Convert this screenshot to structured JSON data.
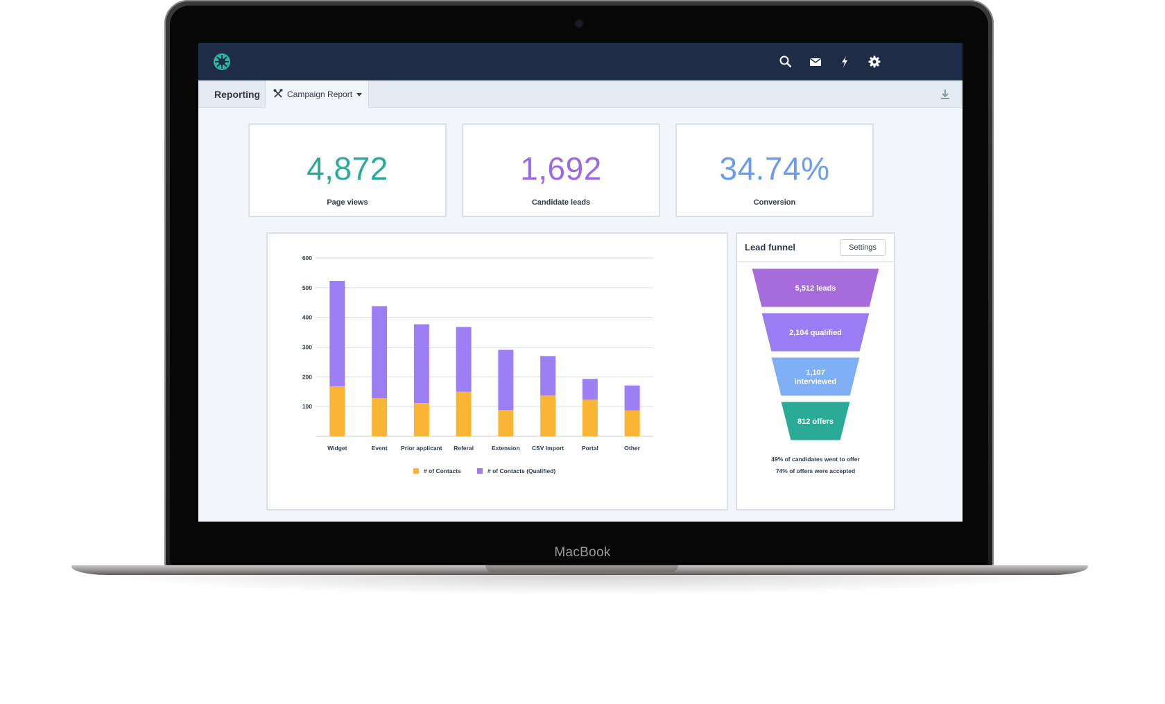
{
  "device": {
    "label": "MacBook"
  },
  "topbar": {
    "logo": "app-logo",
    "icons": [
      "search-icon",
      "mail-icon",
      "bolt-icon",
      "gear-icon"
    ]
  },
  "subbar": {
    "section": "Reporting",
    "report_tab": "Campaign Report",
    "download_icon": "download-icon"
  },
  "stats": [
    {
      "value": "4,872",
      "label": "Page views",
      "color": "#2bab96"
    },
    {
      "value": "1,692",
      "label": "Candidate leads",
      "color": "#9b6ae0"
    },
    {
      "value": "34.74%",
      "label": "Conversion",
      "color": "#6b9cf0"
    }
  ],
  "chart_data": {
    "type": "bar",
    "stacked": true,
    "categories": [
      "Widget",
      "Event",
      "Prior applicant",
      "Referal",
      "Extension",
      "CSV Import",
      "Portal",
      "Other"
    ],
    "series": [
      {
        "name": "# of Contacts",
        "color": "#fbb535",
        "values": [
          168,
          128,
          112,
          150,
          88,
          137,
          123,
          87
        ]
      },
      {
        "name": "# of Contacts (Qualified)",
        "color": "#9c7ef5",
        "values": [
          355,
          310,
          265,
          218,
          203,
          133,
          70,
          84
        ]
      }
    ],
    "ylim": [
      0,
      600
    ],
    "yticks": [
      100,
      200,
      300,
      400,
      500,
      600
    ],
    "grid": true,
    "legend": "bottom"
  },
  "funnel": {
    "title": "Lead funnel",
    "settings_label": "Settings",
    "stages": [
      {
        "lines": [
          "5,512 leads"
        ],
        "color": "#a66cdc"
      },
      {
        "lines": [
          "2,104 qualified"
        ],
        "color": "#9a7cf4"
      },
      {
        "lines": [
          "1,107",
          "interviewed"
        ],
        "color": "#7fb0f5"
      },
      {
        "lines": [
          "812 offers"
        ],
        "color": "#2aab97"
      }
    ],
    "notes": [
      "49% of candidates went to offer",
      "74% of offers were accepted"
    ]
  }
}
